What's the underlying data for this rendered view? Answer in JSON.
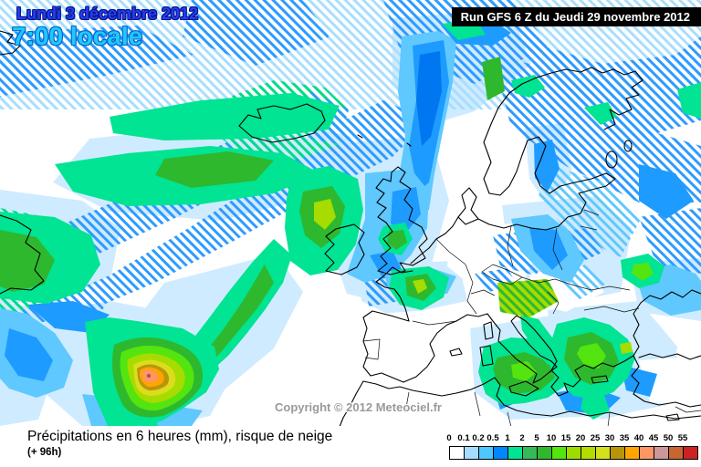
{
  "header": {
    "date_line": "Lundi 3 décembre 2012",
    "time_line": "7:00 locale",
    "run_info": "Run GFS 6 Z du Jeudi 29 novembre 2012"
  },
  "map": {
    "copyright": "Copyright © 2012 Meteociel.fr"
  },
  "footer": {
    "caption": "Précipitations en 6 heures (mm), risque de neige",
    "subcaption": "(+ 96h)"
  },
  "legend": {
    "labels": [
      "0",
      "0.1",
      "0.2",
      "0.5",
      "1",
      "2",
      "5",
      "10",
      "15",
      "20",
      "25",
      "30",
      "35",
      "40",
      "45",
      "50",
      "55"
    ],
    "colors": [
      "#FFFFFF",
      "#A5DCFF",
      "#4FC8FF",
      "#0087FF",
      "#00E493",
      "#35BA57",
      "#2EB82E",
      "#54E410",
      "#9EDC00",
      "#B4DC00",
      "#D2E01E",
      "#B8960C",
      "#FFA400",
      "#FF9663",
      "#CB9999",
      "#C66633",
      "#CD2222"
    ]
  },
  "colors": {
    "date_text": "#2b3cf0",
    "time_text": "#1fc8ff",
    "run_bg": "#000000",
    "run_text": "#ffffff"
  }
}
